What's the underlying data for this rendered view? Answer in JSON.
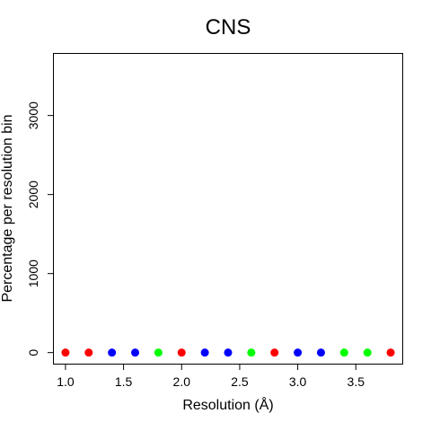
{
  "chart_data": {
    "type": "scatter",
    "title": "CNS",
    "xlabel": "Resolution (Å)",
    "ylabel": "Percentage per resolution bin",
    "xlim": [
      0.9,
      3.9
    ],
    "ylim": [
      -140,
      3780
    ],
    "x_ticks": [
      1.0,
      1.5,
      2.0,
      2.5,
      3.0,
      3.5
    ],
    "x_tick_labels": [
      "1.0",
      "1.5",
      "2.0",
      "2.5",
      "3.0",
      "3.5"
    ],
    "y_ticks": [
      0,
      1000,
      2000,
      3000
    ],
    "y_tick_labels": [
      "0",
      "1000",
      "2000",
      "3000"
    ],
    "grid": false,
    "points": [
      {
        "x": 1.0,
        "y": 0,
        "color": "#ff0000"
      },
      {
        "x": 1.2,
        "y": 0,
        "color": "#ff0000"
      },
      {
        "x": 1.4,
        "y": 0,
        "color": "#0000ff"
      },
      {
        "x": 1.6,
        "y": 0,
        "color": "#0000ff"
      },
      {
        "x": 1.8,
        "y": 0,
        "color": "#00ff00"
      },
      {
        "x": 2.0,
        "y": 0,
        "color": "#ff0000"
      },
      {
        "x": 2.2,
        "y": 0,
        "color": "#0000ff"
      },
      {
        "x": 2.4,
        "y": 0,
        "color": "#0000ff"
      },
      {
        "x": 2.6,
        "y": 0,
        "color": "#00ff00"
      },
      {
        "x": 2.8,
        "y": 0,
        "color": "#ff0000"
      },
      {
        "x": 3.0,
        "y": 0,
        "color": "#0000ff"
      },
      {
        "x": 3.2,
        "y": 0,
        "color": "#0000ff"
      },
      {
        "x": 3.4,
        "y": 0,
        "color": "#00ff00"
      },
      {
        "x": 3.6,
        "y": 0,
        "color": "#00ff00"
      },
      {
        "x": 3.8,
        "y": 0,
        "color": "#ff0000"
      }
    ]
  }
}
